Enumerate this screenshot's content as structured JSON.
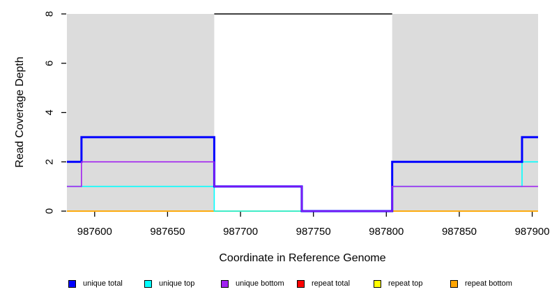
{
  "chart_data": {
    "type": "line",
    "subtype": "step-coverage-plot",
    "title": "",
    "xlabel": "Coordinate in Reference Genome",
    "ylabel": "Read Coverage Depth",
    "xlim": [
      987581,
      987904
    ],
    "ylim": [
      0,
      8
    ],
    "x_ticks": [
      987600,
      987650,
      987700,
      987750,
      987800,
      987850,
      987900
    ],
    "y_ticks": [
      0,
      2,
      4,
      6,
      8
    ],
    "grid": false,
    "legend_position": "bottom",
    "background_color": "#ffffff",
    "region_color": "#DCDCDC",
    "background_regions": [
      {
        "name": "repeat-region-left",
        "x_start": 987581,
        "x_end": 987682
      },
      {
        "name": "repeat-region-right",
        "x_start": 987804,
        "x_end": 987904
      }
    ],
    "top_marker": {
      "y": 8,
      "x_start": 987682,
      "x_end": 987804,
      "color": "#000000"
    },
    "series": [
      {
        "name": "repeat total",
        "color": "#FF0000",
        "width": 1.6,
        "runs": [
          [
            987581,
            987904,
            0
          ]
        ]
      },
      {
        "name": "repeat top",
        "color": "#FFFF00",
        "width": 1.6,
        "runs": [
          [
            987581,
            987904,
            0
          ]
        ]
      },
      {
        "name": "repeat bottom",
        "color": "#FFA500",
        "width": 1.6,
        "runs": [
          [
            987581,
            987904,
            0
          ]
        ]
      },
      {
        "name": "unique top",
        "color": "#00FFFF",
        "width": 1.6,
        "runs": [
          [
            987581,
            987682,
            1
          ],
          [
            987682,
            987804,
            0
          ],
          [
            987804,
            987893,
            1
          ],
          [
            987893,
            987904,
            2
          ]
        ]
      },
      {
        "name": "unique total",
        "color": "#0000FF",
        "width": 3,
        "runs": [
          [
            987581,
            987591,
            2
          ],
          [
            987591,
            987682,
            3
          ],
          [
            987682,
            987742,
            1
          ],
          [
            987742,
            987804,
            0
          ],
          [
            987804,
            987893,
            2
          ],
          [
            987893,
            987904,
            3
          ]
        ]
      },
      {
        "name": "unique bottom",
        "color": "#A020F0",
        "width": 1.6,
        "runs": [
          [
            987581,
            987591,
            1
          ],
          [
            987591,
            987682,
            2
          ],
          [
            987682,
            987742,
            1
          ],
          [
            987742,
            987804,
            0
          ],
          [
            987804,
            987904,
            1
          ]
        ]
      }
    ],
    "legend": [
      {
        "label": "unique total",
        "color": "#0000FF"
      },
      {
        "label": "unique top",
        "color": "#00FFFF"
      },
      {
        "label": "unique bottom",
        "color": "#A020F0"
      },
      {
        "label": "repeat total",
        "color": "#FF0000"
      },
      {
        "label": "repeat top",
        "color": "#FFFF00"
      },
      {
        "label": "repeat bottom",
        "color": "#FFA500"
      }
    ]
  }
}
